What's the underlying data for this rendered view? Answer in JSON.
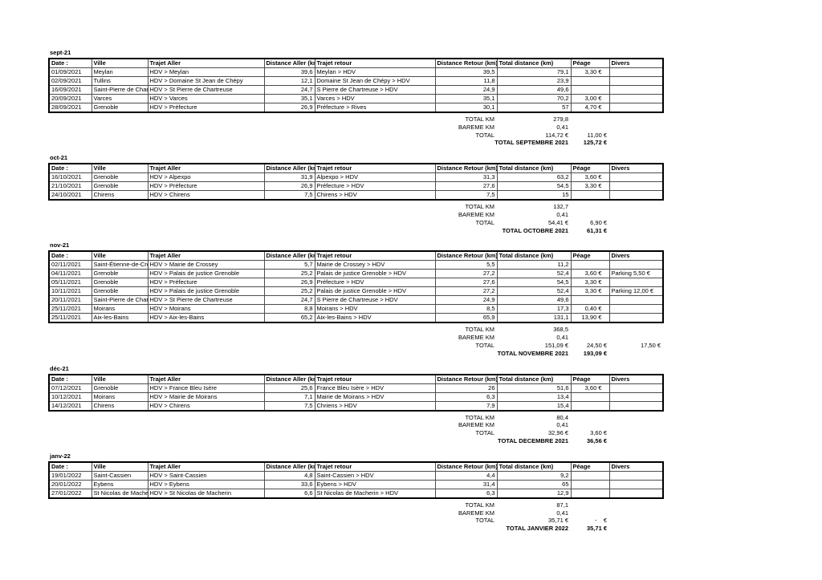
{
  "document": {
    "columns": [
      "Date :",
      "Ville",
      "Trajet Aller",
      "Distance Aller (km",
      "Trajet retour",
      "Distance Retour (km)",
      "Total distance (km)",
      "Péage",
      "Divers"
    ],
    "months": [
      {
        "label": "sept-21",
        "rows": [
          [
            "01/09/2021",
            "Meylan",
            "HDV > Meylan",
            "39,6",
            "Meylan > HDV",
            "39,5",
            "79,1",
            "3,30 €",
            ""
          ],
          [
            "02/09/2021",
            "Tullins",
            "HDV > Domaine St Jean de Chépy",
            "12,1",
            "Domaine St Jean de Chépy > HDV",
            "11,8",
            "23,9",
            "",
            ""
          ],
          [
            "16/09/2021",
            "Saint-Pierre de Chart",
            "HDV > St Pierre de Chartreuse",
            "24,7",
            "S Pierre de Chartreuse > HDV",
            "24,9",
            "49,6",
            "",
            ""
          ],
          [
            "20/09/2021",
            "Varces",
            "HDV > Varces",
            "35,1",
            "Varces > HDV",
            "35,1",
            "70,2",
            "3,00 €",
            ""
          ],
          [
            "28/09/2021",
            "Grenoble",
            "HDV > Préfecture",
            "26,9",
            "Préfecture > Rives",
            "30,1",
            "57",
            "4,70 €",
            ""
          ]
        ],
        "totals": [
          {
            "label": "TOTAL KM",
            "v1": "279,8",
            "v2": "",
            "v3": ""
          },
          {
            "label": "BAREME KM",
            "v1": "0,41",
            "v2": "",
            "v3": ""
          },
          {
            "label": "TOTAL",
            "v1": "114,72 €",
            "v2": "11,00 €",
            "v3": ""
          },
          {
            "label": "TOTAL SEPTEMBRE 2021",
            "v2": "125,72 €",
            "v3": "",
            "bold": true,
            "wide": true
          }
        ]
      },
      {
        "label": "oct-21",
        "rows": [
          [
            "16/10/2021",
            "Grenoble",
            "HDV > Alpexpo",
            "31,9",
            "Alpexpo > HDV",
            "31,3",
            "63,2",
            "3,60 €",
            ""
          ],
          [
            "21/10/2021",
            "Grenoble",
            "HDV > Préfecture",
            "26,9",
            "Préfecture > HDV",
            "27,6",
            "54,5",
            "3,30 €",
            ""
          ],
          [
            "24/10/2021",
            "Chirens",
            "HDV > Chirens",
            "7,5",
            "Chirens > HDV",
            "7,5",
            "15",
            "",
            ""
          ]
        ],
        "totals": [
          {
            "label": "TOTAL KM",
            "v1": "132,7",
            "v2": "",
            "v3": ""
          },
          {
            "label": "BAREME KM",
            "v1": "0,41",
            "v2": "",
            "v3": ""
          },
          {
            "label": "TOTAL",
            "v1": "54,41 €",
            "v2": "6,90 €",
            "v3": ""
          },
          {
            "label": "TOTAL OCTOBRE 2021",
            "v2": "61,31 €",
            "v3": "",
            "bold": true,
            "wide": true
          }
        ]
      },
      {
        "label": "nov-21",
        "rows": [
          [
            "02/11/2021",
            "Saint-Étienne-de-Cro",
            "HDV > Mairie de Crossey",
            "5,7",
            "Mairie de Crossey > HDV",
            "5,5",
            "11,2",
            "",
            ""
          ],
          [
            "04/11/2021",
            "Grenoble",
            "HDV > Palais de justice Grenoble",
            "25,2",
            "Palais de justice Grenoble > HDV",
            "27,2",
            "52,4",
            "3,60 €",
            "Parking 5,50 €"
          ],
          [
            "05/11/2021",
            "Grenoble",
            "HDV > Préfecture",
            "26,9",
            "Préfecture > HDV",
            "27,6",
            "54,5",
            "3,30 €",
            ""
          ],
          [
            "10/11/2021",
            "Grenoble",
            "HDV > Palais de justice Grenoble",
            "25,2",
            "Palais de justice Grenoble > HDV",
            "27,2",
            "52,4",
            "3,30 €",
            "Parking 12,00 €"
          ],
          [
            "20/11/2021",
            "Saint-Pierre de Chart",
            "HDV > St Pierre de Chartreuse",
            "24,7",
            "S Pierre de Chartreuse > HDV",
            "24,9",
            "49,6",
            "",
            ""
          ],
          [
            "25/11/2021",
            "Moirans",
            "HDV > Moirans",
            "8,8",
            "Moirans > HDV",
            "8,5",
            "17,3",
            "0,40 €",
            ""
          ],
          [
            "25/11/2021",
            "Aix-les-Bains",
            "HDV > Aix-les-Bains",
            "65,2",
            "Aix-les-Bains > HDV",
            "65,9",
            "131,1",
            "13,90 €",
            ""
          ]
        ],
        "totals": [
          {
            "label": "TOTAL KM",
            "v1": "368,5",
            "v2": "",
            "v3": ""
          },
          {
            "label": "BAREME KM",
            "v1": "0,41",
            "v2": "",
            "v3": ""
          },
          {
            "label": "TOTAL",
            "v1": "151,09 €",
            "v2": "24,50 €",
            "v3": "17,50 €"
          },
          {
            "label": "TOTAL NOVEMBRE 2021",
            "v2": "193,09 €",
            "v3": "",
            "bold": true,
            "wide": true
          }
        ]
      },
      {
        "label": "déc-21",
        "rows": [
          [
            "07/12/2021",
            "Grenoble",
            "HDV > France Bleu Isère",
            "25,6",
            "France Bleu Isère > HDV",
            "26",
            "51,6",
            "3,60 €",
            ""
          ],
          [
            "10/12/2021",
            "Moirans",
            "HDV > Mairie de Moirans",
            "7,1",
            "Mairie de Moirans > HDV",
            "6,3",
            "13,4",
            "",
            ""
          ],
          [
            "14/12/2021",
            "Chirens",
            "HDV > Chirens",
            "7,5",
            "Chriens > HDV",
            "7,9",
            "15,4",
            "",
            ""
          ]
        ],
        "totals": [
          {
            "label": "TOTAL KM",
            "v1": "80,4",
            "v2": "",
            "v3": ""
          },
          {
            "label": "BAREME KM",
            "v1": "0,41",
            "v2": "",
            "v3": ""
          },
          {
            "label": "TOTAL",
            "v1": "32,96 €",
            "v2": "3,60 €",
            "v3": ""
          },
          {
            "label": "TOTAL DECEMBRE 2021",
            "v2": "36,56 €",
            "v3": "",
            "bold": true,
            "wide": true
          }
        ]
      },
      {
        "label": "janv-22",
        "rows": [
          [
            "19/01/2022",
            "Saint-Cassien",
            "HDV > Saint-Cassien",
            "4,8",
            "Saint-Cassien > HDV",
            "4,4",
            "9,2",
            "",
            ""
          ],
          [
            "20/01/2022",
            "Eybens",
            "HDV > Eybens",
            "33,6",
            "Eybens > HDV",
            "31,4",
            "65",
            "",
            ""
          ],
          [
            "27/01/2022",
            "St Nicolas de Macher",
            "HDV > St Nicolas de Macherin",
            "6,6",
            "St Nicolas de Macherin > HDV",
            "6,3",
            "12,9",
            "",
            ""
          ]
        ],
        "totals": [
          {
            "label": "TOTAL KM",
            "v1": "87,1",
            "v2": "",
            "v3": ""
          },
          {
            "label": "BAREME KM",
            "v1": "0,41",
            "v2": "",
            "v3": ""
          },
          {
            "label": "TOTAL",
            "v1": "35,71 €",
            "v2": "-    €",
            "v3": ""
          },
          {
            "label": "TOTAL JANVIER 2022",
            "v2": "35,71 €",
            "v3": "",
            "bold": true,
            "wide": true
          }
        ]
      }
    ]
  }
}
